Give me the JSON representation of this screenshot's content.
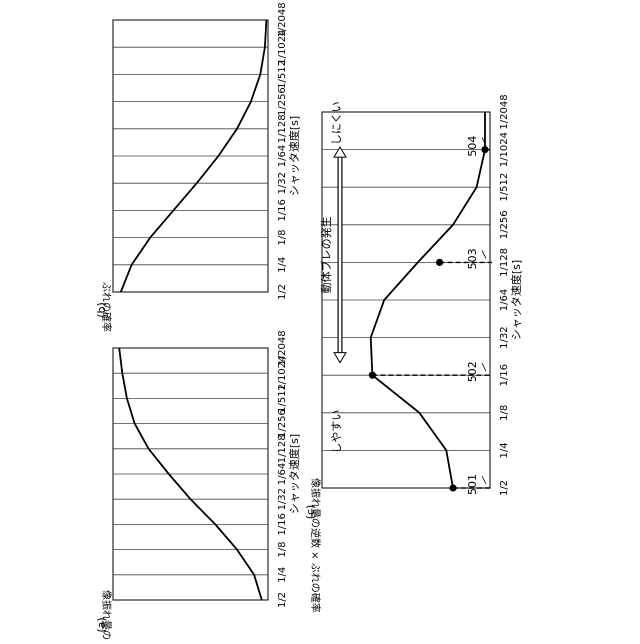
{
  "figure": {
    "orientation_note": "rotated",
    "panel_a_label": "(a)",
    "panel_b_label": "(b)",
    "panel_c_label": "(c)"
  },
  "chart_data": [
    {
      "panel": "(a)",
      "type": "line",
      "xlabel": "シャッタ速度[s]",
      "ylabel": "像振れ量の逆数",
      "categories": [
        "1/2",
        "1/4",
        "1/8",
        "1/16",
        "1/32",
        "1/64",
        "1/128",
        "1/256",
        "1/512",
        "1/1024",
        "1/2048"
      ],
      "values": [
        0.04,
        0.09,
        0.2,
        0.34,
        0.5,
        0.64,
        0.77,
        0.86,
        0.91,
        0.94,
        0.96
      ],
      "ylim": [
        0,
        1
      ],
      "grid": true
    },
    {
      "panel": "(b)",
      "type": "line",
      "xlabel": "シャッタ速度[s]",
      "ylabel": "ぶれの確率",
      "categories": [
        "1/2",
        "1/4",
        "1/8",
        "1/16",
        "1/32",
        "1/64",
        "1/128",
        "1/256",
        "1/512",
        "1/1024",
        "1/2048"
      ],
      "values": [
        0.95,
        0.88,
        0.76,
        0.61,
        0.46,
        0.32,
        0.2,
        0.11,
        0.05,
        0.02,
        0.01
      ],
      "ylim": [
        0,
        1
      ],
      "grid": true
    },
    {
      "panel": "(c)",
      "type": "line",
      "xlabel": "シャッタ速度[s]",
      "ylabel": "像振れ量の逆数 × ぶれの確率",
      "categories": [
        "1/2",
        "1/4",
        "1/8",
        "1/16",
        "1/32",
        "1/64",
        "1/128",
        "1/256",
        "1/512",
        "1/1024",
        "1/2048"
      ],
      "values": [
        0.22,
        0.26,
        0.42,
        0.7,
        0.71,
        0.63,
        0.43,
        0.22,
        0.08,
        0.03,
        0.03
      ],
      "ylim": [
        0,
        1
      ],
      "grid": true,
      "markers": [
        {
          "label": "501",
          "x": "1/2",
          "y": 0.22
        },
        {
          "label": "502",
          "x": "1/16",
          "y": 0.7
        },
        {
          "label": "503",
          "x": "1/128",
          "y": 0.3
        },
        {
          "label": "504",
          "x": "1/1024",
          "y": 0.03
        }
      ],
      "annotation": {
        "title": "動体ブレの発生",
        "left_label": "しやすい",
        "right_label": "しにくい"
      }
    }
  ]
}
